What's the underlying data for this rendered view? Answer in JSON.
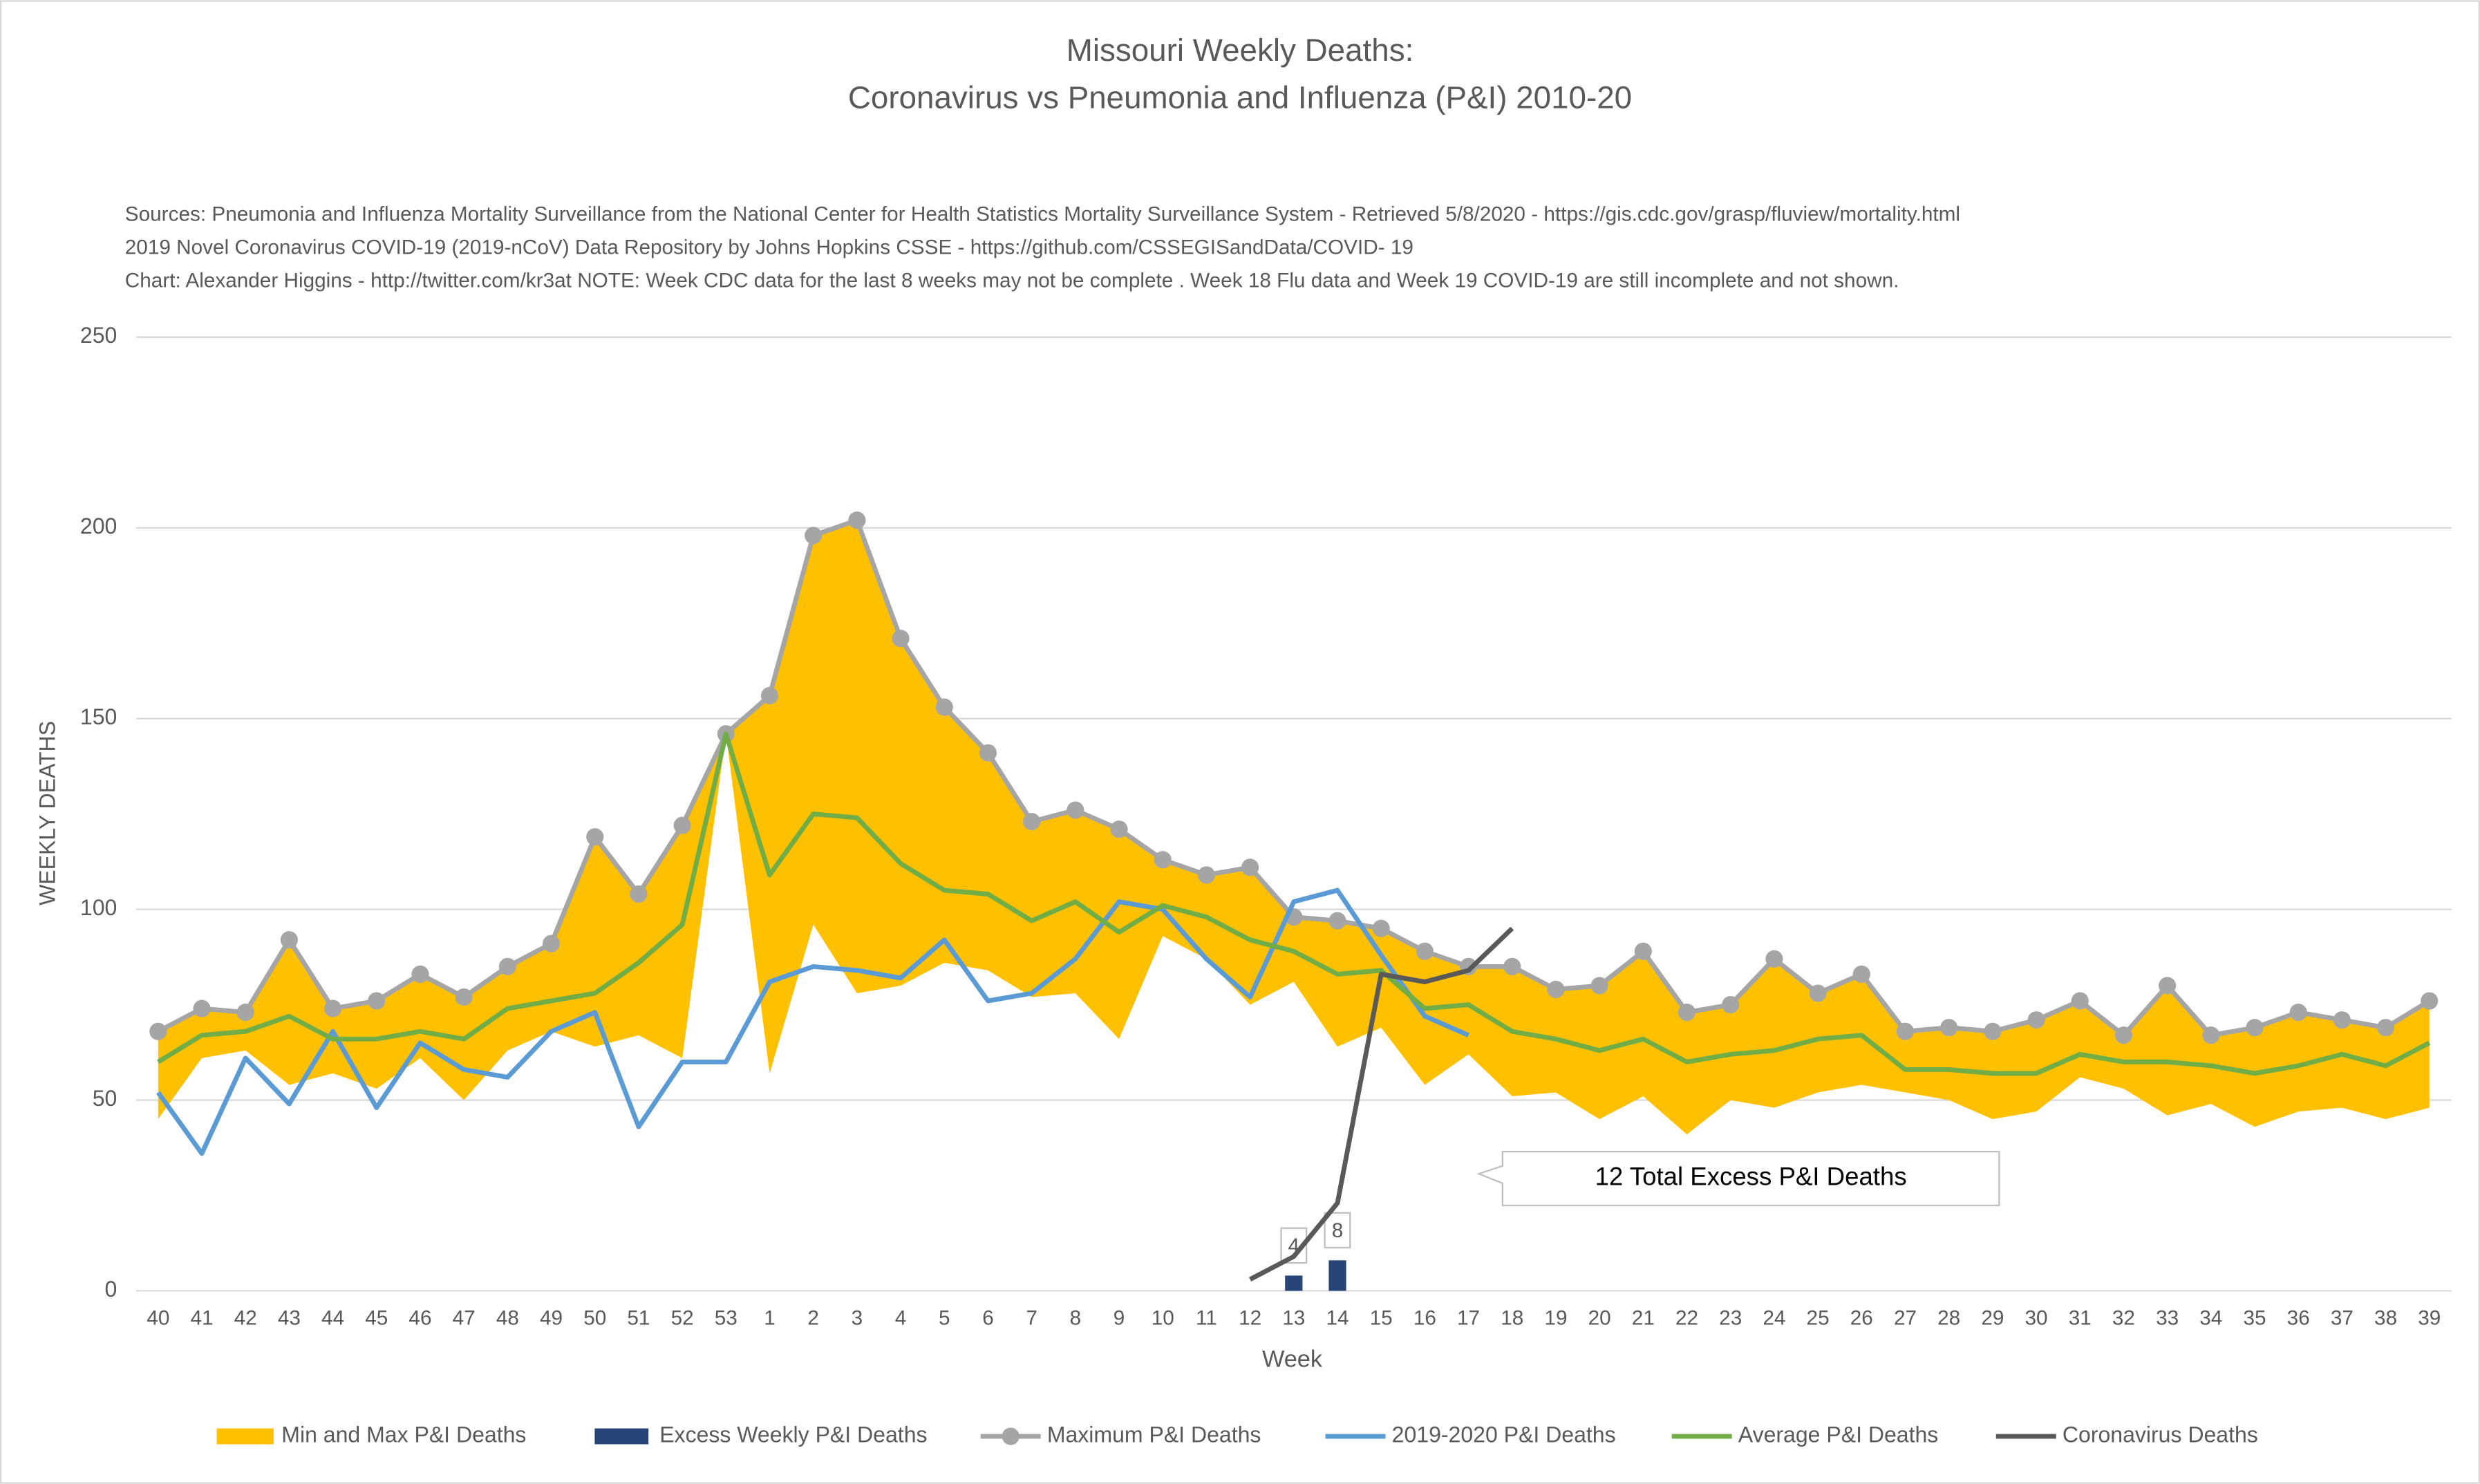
{
  "chart_data": {
    "type": "line",
    "title": [
      "Missouri Weekly Deaths:",
      "Coronavirus vs Pneumonia and Influenza (P&I) 2010-20"
    ],
    "notes": [
      "Sources: Pneumonia and Influenza Mortality Surveillance from the National Center for Health Statistics Mortality Surveillance System - Retrieved 5/8/2020 - https://gis.cdc.gov/grasp/fluview/mortality.html",
      "2019 Novel Coronavirus COVID-19 (2019-nCoV) Data Repository by Johns Hopkins CSSE - https://github.com/CSSEGISandData/COVID- 19",
      "Chart: Alexander Higgins - http://twitter.com/kr3at   NOTE: Week CDC data for the last 8 weeks may not be complete . Week 18 Flu data and Week 19 COVID-19 are still incomplete and not shown."
    ],
    "xlabel": "Week",
    "ylabel": "WEEKLY DEATHS",
    "annotation": "12 Total Excess P&I Deaths",
    "categories": [
      40,
      41,
      42,
      43,
      44,
      45,
      46,
      47,
      48,
      49,
      50,
      51,
      52,
      53,
      1,
      2,
      3,
      4,
      5,
      6,
      7,
      8,
      9,
      10,
      11,
      12,
      13,
      14,
      15,
      16,
      17,
      18,
      19,
      20,
      21,
      22,
      23,
      24,
      25,
      26,
      27,
      28,
      29,
      30,
      31,
      32,
      33,
      34,
      35,
      36,
      37,
      38,
      39
    ],
    "ylim": [
      0,
      250
    ],
    "yticks": [
      0,
      50,
      100,
      150,
      200,
      250
    ],
    "grid": true,
    "legend": "bottom",
    "series": [
      {
        "name": "Min and Max P&I Deaths",
        "kind": "area",
        "color": "#FFC000",
        "values": [
          45,
          61,
          63,
          54,
          57,
          53,
          61,
          50,
          63,
          68,
          64,
          67,
          61,
          146,
          57,
          96,
          78,
          80,
          86,
          84,
          77,
          78,
          66,
          93,
          87,
          75,
          81,
          64,
          69,
          54,
          62,
          51,
          52,
          45,
          51,
          41,
          50,
          48,
          52,
          54,
          52,
          50,
          45,
          47,
          56,
          53,
          46,
          49,
          43,
          47,
          48,
          45,
          48
        ]
      },
      {
        "name": "Excess Weekly P&I Deaths",
        "kind": "bar",
        "color": "#264478",
        "values": [
          null,
          null,
          null,
          null,
          null,
          null,
          null,
          null,
          null,
          null,
          null,
          null,
          null,
          null,
          null,
          null,
          null,
          null,
          null,
          null,
          null,
          null,
          null,
          null,
          null,
          null,
          4,
          8,
          null,
          null,
          null,
          null,
          null,
          null,
          null,
          null,
          null,
          null,
          null,
          null,
          null,
          null,
          null,
          null,
          null,
          null,
          null,
          null,
          null,
          null,
          null,
          null,
          null
        ]
      },
      {
        "name": "Maximum P&I Deaths",
        "kind": "line",
        "markers": true,
        "color": "#A5A5A5",
        "values": [
          68,
          74,
          73,
          92,
          74,
          76,
          83,
          77,
          85,
          91,
          119,
          104,
          122,
          146,
          156,
          198,
          202,
          171,
          153,
          141,
          123,
          126,
          121,
          113,
          109,
          111,
          98,
          97,
          95,
          89,
          85,
          85,
          79,
          80,
          89,
          73,
          75,
          87,
          78,
          83,
          68,
          69,
          68,
          71,
          76,
          67,
          80,
          67,
          69,
          73,
          71,
          69,
          76
        ]
      },
      {
        "name": "2019-2020 P&I Deaths",
        "kind": "line",
        "color": "#5B9BD5",
        "values": [
          52,
          36,
          61,
          49,
          68,
          48,
          65,
          58,
          56,
          68,
          73,
          43,
          60,
          60,
          81,
          85,
          84,
          82,
          92,
          76,
          78,
          87,
          102,
          100,
          87,
          77,
          102,
          105,
          88,
          72,
          67,
          null,
          null,
          null,
          null,
          null,
          null,
          null,
          null,
          null,
          null,
          null,
          null,
          null,
          null,
          null,
          null,
          null,
          null,
          null,
          null,
          null,
          null
        ]
      },
      {
        "name": "Average P&I Deaths",
        "kind": "line",
        "color": "#70AD47",
        "values": [
          60,
          67,
          68,
          72,
          66,
          66,
          68,
          66,
          74,
          76,
          78,
          86,
          96,
          146,
          109,
          125,
          124,
          112,
          105,
          104,
          97,
          102,
          94,
          101,
          98,
          92,
          89,
          83,
          84,
          74,
          75,
          68,
          66,
          63,
          66,
          60,
          62,
          63,
          66,
          67,
          58,
          58,
          57,
          57,
          62,
          60,
          60,
          59,
          57,
          59,
          62,
          59,
          65
        ]
      },
      {
        "name": "Coronavirus Deaths",
        "kind": "line",
        "color": "#595959",
        "values": [
          null,
          null,
          null,
          null,
          null,
          null,
          null,
          null,
          null,
          null,
          null,
          null,
          null,
          null,
          null,
          null,
          null,
          null,
          null,
          null,
          null,
          null,
          null,
          null,
          null,
          3,
          9,
          23,
          83,
          81,
          84,
          95,
          null,
          null,
          null,
          null,
          null,
          null,
          null,
          null,
          null,
          null,
          null,
          null,
          null,
          null,
          null,
          null,
          null,
          null,
          null,
          null,
          null
        ]
      }
    ]
  }
}
